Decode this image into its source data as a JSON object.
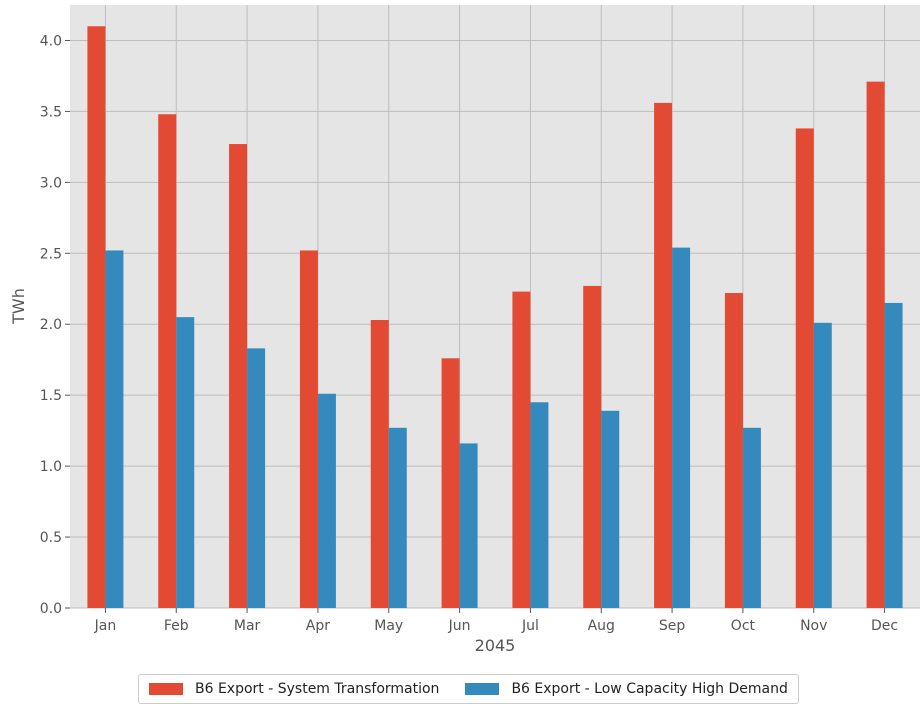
{
  "chart_data": {
    "type": "bar",
    "categories": [
      "Jan",
      "Feb",
      "Mar",
      "Apr",
      "May",
      "Jun",
      "Jul",
      "Aug",
      "Sep",
      "Oct",
      "Nov",
      "Dec"
    ],
    "series": [
      {
        "name": "B6 Export - System Transformation",
        "color": "#e24a33",
        "values": [
          4.1,
          3.48,
          3.27,
          2.52,
          2.03,
          1.76,
          2.23,
          2.27,
          3.56,
          2.22,
          3.38,
          3.71
        ]
      },
      {
        "name": "B6 Export - Low Capacity High Demand",
        "color": "#348abd",
        "values": [
          2.52,
          2.05,
          1.83,
          1.51,
          1.27,
          1.16,
          1.45,
          1.39,
          2.54,
          1.27,
          2.01,
          2.15
        ]
      }
    ],
    "title": "",
    "xlabel": "2045",
    "ylabel": "TWh",
    "ylim": [
      0,
      4.25
    ],
    "yticks": [
      "0.0",
      "0.5",
      "1.0",
      "1.5",
      "2.0",
      "2.5",
      "3.0",
      "3.5",
      "4.0"
    ],
    "grid": true,
    "legend_position": "bottom"
  }
}
